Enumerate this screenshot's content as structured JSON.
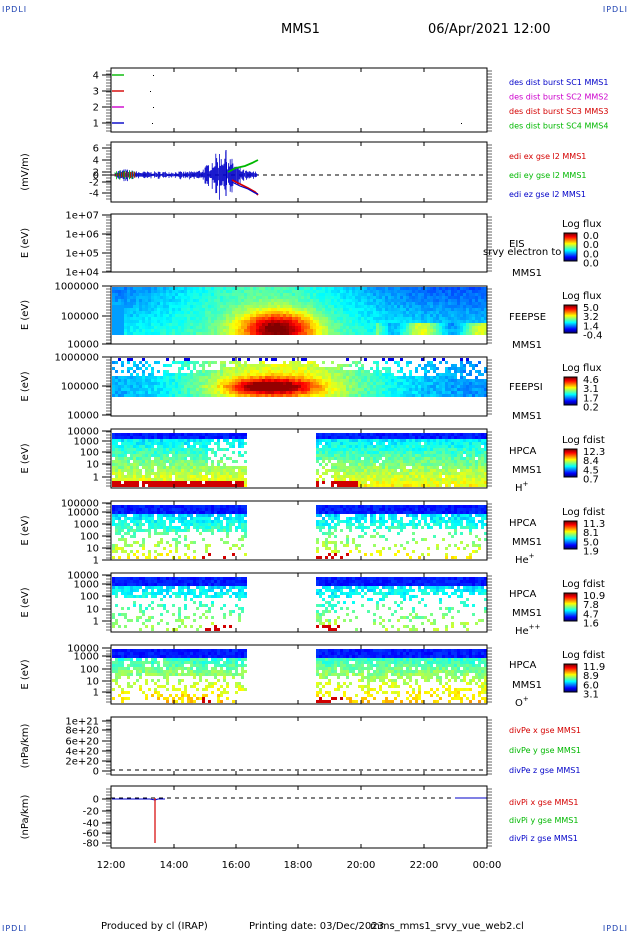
{
  "corner_label": "IPDLI",
  "header": {
    "mission": "MMS1",
    "datetime": "06/Apr/2021 12:00"
  },
  "footer": {
    "producer": "Produced by cl (IRAP)",
    "printing": "Printing date: 03/Dec/2023",
    "file": "mms_mms1_srvy_vue_web2.cl"
  },
  "colors": {
    "red": "#d40000",
    "magenta": "#cc00cc",
    "blue": "#0000c8",
    "green": "#00b800",
    "black": "#000000"
  },
  "chart_data": [
    {
      "type": "line",
      "panel": "burst",
      "y_ticks": [
        "4",
        "3",
        "2",
        "1"
      ],
      "series": [
        {
          "name": "des dist burst SC1 MMS1",
          "color": "#0000c8"
        },
        {
          "name": "des dist burst SC2 MMS2",
          "color": "#cc00cc"
        },
        {
          "name": "des dist burst SC3 MMS3",
          "color": "#d40000"
        },
        {
          "name": "des dist burst SC4 MMS4",
          "color": "#00b800"
        }
      ]
    },
    {
      "type": "line",
      "panel": "edi",
      "ylabel": "(mV/m)",
      "y_ticks": [
        "6",
        "4",
        "2",
        "0",
        "-2",
        "-4"
      ],
      "ylim": [
        -5,
        6
      ],
      "series": [
        {
          "name": "edi ex gse l2 MMS1",
          "color": "#d40000"
        },
        {
          "name": "edi ey gse l2 MMS1",
          "color": "#00b800"
        },
        {
          "name": "edi ez gse l2 MMS1",
          "color": "#0000c8"
        }
      ]
    },
    {
      "type": "heatmap",
      "panel": "EIS",
      "ylabel": "E (eV)",
      "y_ticks": [
        "1e+07",
        "1e+06",
        "1e+05",
        "1e+04"
      ],
      "instrument": "EIS",
      "spacecraft": "MMS1",
      "overlay_text": "srvy electron to",
      "colorbar_title": "Log flux",
      "colorbar_ticks": [
        "0.0",
        "0.0",
        "0.0",
        "0.0"
      ]
    },
    {
      "type": "heatmap",
      "panel": "FEEPSE",
      "ylabel": "E (eV)",
      "y_ticks": [
        "1000000",
        "100000",
        "10000"
      ],
      "instrument": "FEEPSE",
      "spacecraft": "MMS1",
      "colorbar_title": "Log flux",
      "colorbar_ticks": [
        "5.0",
        "3.2",
        "1.4",
        "-0.4"
      ]
    },
    {
      "type": "heatmap",
      "panel": "FEEPSI",
      "ylabel": "E (eV)",
      "y_ticks": [
        "1000000",
        "100000",
        "10000"
      ],
      "instrument": "FEEPSI",
      "spacecraft": "MMS1",
      "colorbar_title": "Log flux",
      "colorbar_ticks": [
        "4.6",
        "3.1",
        "1.7",
        "0.2"
      ]
    },
    {
      "type": "heatmap",
      "panel": "HPCA H+",
      "ylabel": "E (eV)",
      "y_ticks": [
        "10000",
        "1000",
        "100",
        "10",
        "1"
      ],
      "instrument": "HPCA",
      "spacecraft": "MMS1",
      "species": "H",
      "charge": "+",
      "colorbar_title": "Log fdist",
      "colorbar_ticks": [
        "12.3",
        "8.4",
        "4.5",
        "0.7"
      ]
    },
    {
      "type": "heatmap",
      "panel": "HPCA He+",
      "ylabel": "E (eV)",
      "y_ticks": [
        "100000",
        "10000",
        "1000",
        "100",
        "10",
        "1"
      ],
      "instrument": "HPCA",
      "spacecraft": "MMS1",
      "species": "He",
      "charge": "+",
      "colorbar_title": "Log fdist",
      "colorbar_ticks": [
        "11.3",
        "8.1",
        "5.0",
        "1.9"
      ]
    },
    {
      "type": "heatmap",
      "panel": "HPCA He++",
      "ylabel": "E (eV)",
      "y_ticks": [
        "10000",
        "1000",
        "100",
        "10",
        "1"
      ],
      "instrument": "HPCA",
      "spacecraft": "MMS1",
      "species": "He",
      "charge": "++",
      "colorbar_title": "Log fdist",
      "colorbar_ticks": [
        "10.9",
        "7.8",
        "4.7",
        "1.6"
      ]
    },
    {
      "type": "heatmap",
      "panel": "HPCA O+",
      "ylabel": "E (eV)",
      "y_ticks": [
        "10000",
        "1000",
        "100",
        "10",
        "1"
      ],
      "instrument": "HPCA",
      "spacecraft": "MMS1",
      "species": "O",
      "charge": "+",
      "colorbar_title": "Log fdist",
      "colorbar_ticks": [
        "11.9",
        "8.9",
        "6.0",
        "3.1"
      ]
    },
    {
      "type": "line",
      "panel": "divPe",
      "ylabel": "(nPa/km)",
      "y_ticks": [
        "1e+21",
        "8e+20",
        "6e+20",
        "4e+20",
        "2e+20",
        "0"
      ],
      "series": [
        {
          "name": "divPe x gse MMS1",
          "color": "#d40000"
        },
        {
          "name": "divPe y gse MMS1",
          "color": "#00b800"
        },
        {
          "name": "divPe z gse MMS1",
          "color": "#0000c8"
        }
      ]
    },
    {
      "type": "line",
      "panel": "divPi",
      "ylabel": "(nPa/km)",
      "y_ticks": [
        "0",
        "-20",
        "-40",
        "-60",
        "-80"
      ],
      "ylim": [
        -90,
        5
      ],
      "series": [
        {
          "name": "divPi x gse MMS1",
          "color": "#d40000"
        },
        {
          "name": "divPi y gse MMS1",
          "color": "#00b800"
        },
        {
          "name": "divPi z gse MMS1",
          "color": "#0000c8"
        }
      ]
    }
  ],
  "x_axis": {
    "ticks": [
      "12:00",
      "14:00",
      "16:00",
      "18:00",
      "20:00",
      "22:00",
      "00:00"
    ]
  }
}
